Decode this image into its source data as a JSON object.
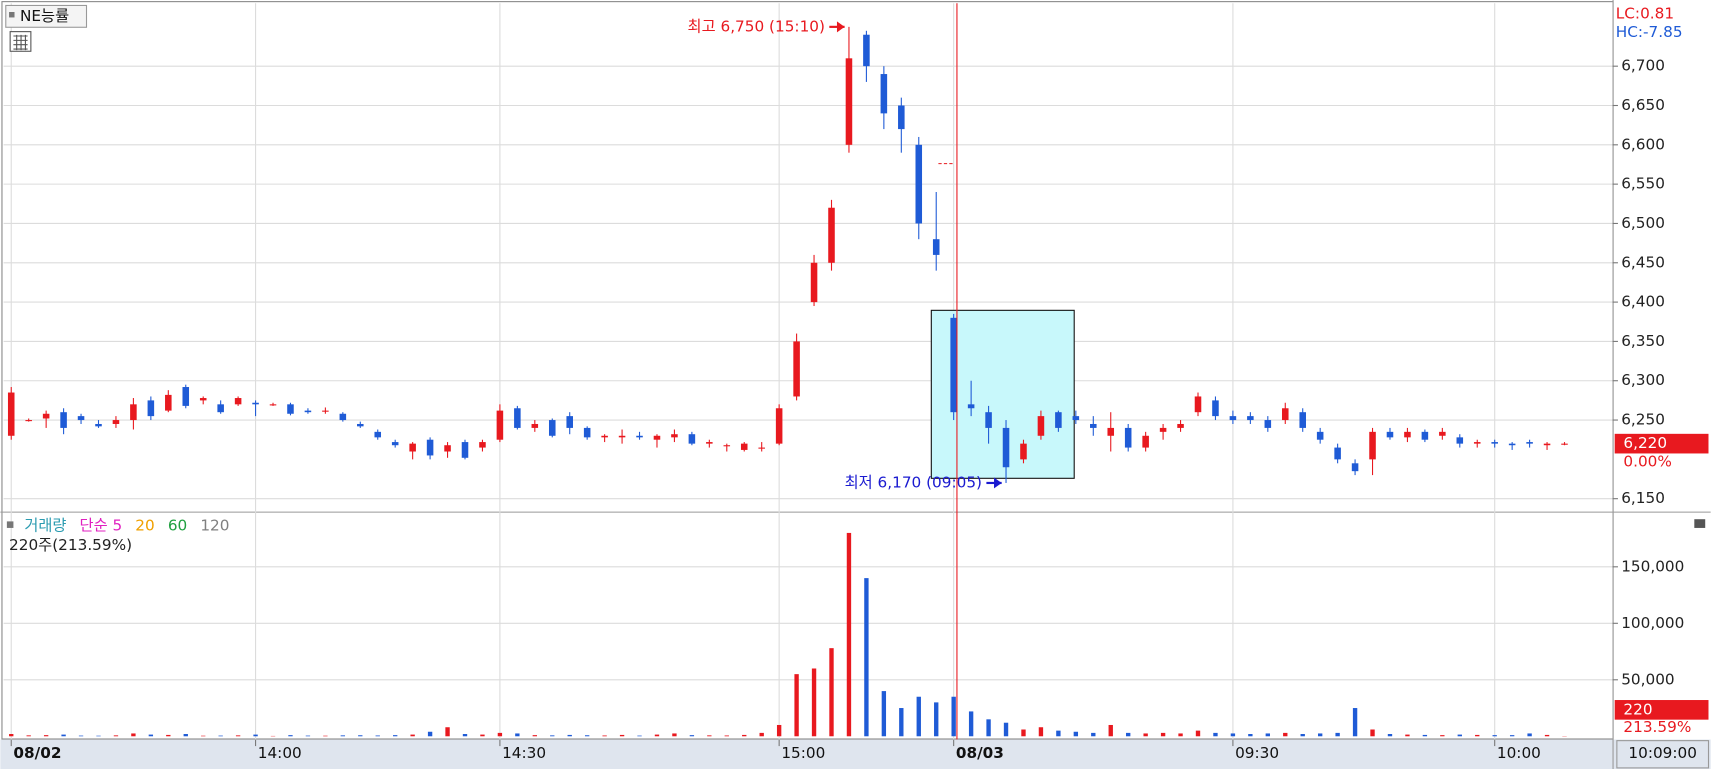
{
  "toolbar": {
    "symbol": "NE능률"
  },
  "indicators": {
    "lc": "LC:0.81",
    "hc": "HC:-7.85"
  },
  "chart_data": [
    {
      "type": "candlestick",
      "up_color": "#e8191f",
      "down_color": "#1f5bd6",
      "ylim": [
        6135,
        6780
      ],
      "yticks": [
        {
          "value": 6150,
          "label": "6,150"
        },
        {
          "value": 6250,
          "label": "6,250"
        },
        {
          "value": 6300,
          "label": "6,300"
        },
        {
          "value": 6350,
          "label": "6,350"
        },
        {
          "value": 6400,
          "label": "6,400"
        },
        {
          "value": 6450,
          "label": "6,450"
        },
        {
          "value": 6500,
          "label": "6,500"
        },
        {
          "value": 6550,
          "label": "6,550"
        },
        {
          "value": 6600,
          "label": "6,600"
        },
        {
          "value": 6650,
          "label": "6,650"
        },
        {
          "value": 6700,
          "label": "6,700"
        }
      ],
      "grid": true,
      "last_price": 6220,
      "last_price_label": "6,220",
      "change_label": "0.00%",
      "annotations": [
        {
          "text": "최고 6,750 (15:10)",
          "value": 6750,
          "index": 48,
          "color": "#e8191f"
        },
        {
          "text": "최저 6,170 (09:05)",
          "value": 6170,
          "index": 57,
          "color": "#1a1ad0"
        }
      ],
      "candles": [
        [
          6230,
          6292,
          6225,
          6285
        ],
        [
          6250,
          6252,
          6248,
          6250
        ],
        [
          6252,
          6262,
          6240,
          6258
        ],
        [
          6260,
          6265,
          6232,
          6240
        ],
        [
          6255,
          6258,
          6245,
          6250
        ],
        [
          6245,
          6250,
          6240,
          6242
        ],
        [
          6245,
          6255,
          6240,
          6250
        ],
        [
          6250,
          6278,
          6238,
          6270
        ],
        [
          6275,
          6280,
          6250,
          6255
        ],
        [
          6262,
          6288,
          6260,
          6282
        ],
        [
          6292,
          6295,
          6265,
          6268
        ],
        [
          6275,
          6280,
          6270,
          6278
        ],
        [
          6270,
          6275,
          6258,
          6260
        ],
        [
          6270,
          6280,
          6268,
          6278
        ],
        [
          6272,
          6275,
          6255,
          6270
        ],
        [
          6270,
          6272,
          6268,
          6270
        ],
        [
          6270,
          6272,
          6256,
          6258
        ],
        [
          6262,
          6265,
          6258,
          6260
        ],
        [
          6262,
          6266,
          6258,
          6262
        ],
        [
          6258,
          6260,
          6248,
          6250
        ],
        [
          6245,
          6248,
          6240,
          6242
        ],
        [
          6235,
          6238,
          6225,
          6228
        ],
        [
          6222,
          6225,
          6215,
          6218
        ],
        [
          6210,
          6222,
          6200,
          6220
        ],
        [
          6225,
          6228,
          6200,
          6205
        ],
        [
          6210,
          6222,
          6202,
          6218
        ],
        [
          6222,
          6225,
          6200,
          6202
        ],
        [
          6215,
          6225,
          6210,
          6222
        ],
        [
          6225,
          6270,
          6222,
          6262
        ],
        [
          6265,
          6268,
          6238,
          6240
        ],
        [
          6240,
          6250,
          6235,
          6245
        ],
        [
          6250,
          6252,
          6228,
          6230
        ],
        [
          6255,
          6260,
          6232,
          6240
        ],
        [
          6240,
          6242,
          6225,
          6228
        ],
        [
          6228,
          6232,
          6222,
          6230
        ],
        [
          6228,
          6238,
          6220,
          6230
        ],
        [
          6230,
          6235,
          6225,
          6228
        ],
        [
          6225,
          6232,
          6215,
          6230
        ],
        [
          6228,
          6238,
          6222,
          6232
        ],
        [
          6232,
          6235,
          6218,
          6220
        ],
        [
          6220,
          6225,
          6215,
          6222
        ],
        [
          6218,
          6220,
          6210,
          6218
        ],
        [
          6212,
          6222,
          6210,
          6220
        ],
        [
          6215,
          6222,
          6210,
          6215
        ],
        [
          6220,
          6270,
          6218,
          6265
        ],
        [
          6280,
          6360,
          6275,
          6350
        ],
        [
          6400,
          6460,
          6395,
          6450
        ],
        [
          6450,
          6530,
          6440,
          6520
        ],
        [
          6600,
          6750,
          6590,
          6710
        ],
        [
          6740,
          6745,
          6680,
          6700
        ],
        [
          6690,
          6700,
          6620,
          6640
        ],
        [
          6650,
          6660,
          6590,
          6620
        ],
        [
          6600,
          6610,
          6480,
          6500
        ],
        [
          6480,
          6540,
          6440,
          6460
        ],
        [
          6380,
          6385,
          6250,
          6260
        ],
        [
          6270,
          6300,
          6255,
          6265
        ],
        [
          6260,
          6268,
          6220,
          6240
        ],
        [
          6240,
          6250,
          6170,
          6190
        ],
        [
          6200,
          6225,
          6195,
          6220
        ],
        [
          6230,
          6262,
          6225,
          6255
        ],
        [
          6260,
          6262,
          6235,
          6240
        ],
        [
          6255,
          6262,
          6245,
          6250
        ],
        [
          6245,
          6255,
          6230,
          6240
        ],
        [
          6230,
          6260,
          6210,
          6240
        ],
        [
          6240,
          6245,
          6210,
          6215
        ],
        [
          6215,
          6235,
          6210,
          6230
        ],
        [
          6235,
          6245,
          6225,
          6240
        ],
        [
          6240,
          6250,
          6235,
          6245
        ],
        [
          6260,
          6285,
          6255,
          6280
        ],
        [
          6275,
          6280,
          6250,
          6255
        ],
        [
          6255,
          6262,
          6245,
          6250
        ],
        [
          6255,
          6260,
          6245,
          6250
        ],
        [
          6250,
          6255,
          6235,
          6240
        ],
        [
          6250,
          6272,
          6245,
          6265
        ],
        [
          6260,
          6265,
          6235,
          6240
        ],
        [
          6235,
          6240,
          6220,
          6225
        ],
        [
          6215,
          6220,
          6195,
          6200
        ],
        [
          6195,
          6200,
          6180,
          6185
        ],
        [
          6200,
          6240,
          6180,
          6235
        ],
        [
          6235,
          6240,
          6225,
          6228
        ],
        [
          6228,
          6240,
          6222,
          6235
        ],
        [
          6235,
          6238,
          6222,
          6225
        ],
        [
          6230,
          6240,
          6225,
          6235
        ],
        [
          6228,
          6232,
          6215,
          6220
        ],
        [
          6220,
          6225,
          6215,
          6222
        ],
        [
          6222,
          6225,
          6215,
          6220
        ],
        [
          6220,
          6222,
          6212,
          6218
        ],
        [
          6222,
          6225,
          6215,
          6220
        ],
        [
          6218,
          6222,
          6212,
          6220
        ],
        [
          6220,
          6222,
          6218,
          6220
        ]
      ]
    },
    {
      "type": "bar",
      "legend": [
        {
          "name": "거래량",
          "color": "#2a9bb0"
        },
        {
          "name": "단순 5",
          "color": "#e020c0"
        },
        {
          "name": "20",
          "color": "#f0a000"
        },
        {
          "name": "60",
          "color": "#20a040"
        },
        {
          "name": "120",
          "color": "#808080"
        }
      ],
      "subtitle": "220주(213.59%)",
      "ylim": [
        0,
        196000
      ],
      "yticks": [
        {
          "value": 50000,
          "label": "50,000"
        },
        {
          "value": 100000,
          "label": "100,000"
        },
        {
          "value": 150000,
          "label": "150,000"
        }
      ],
      "grid": true,
      "last_value": 220,
      "last_value_label": "220",
      "last_change_label": "213.59%",
      "xticks": [
        {
          "value": 0,
          "label": "08/02"
        },
        {
          "value": 14,
          "label": "14:00"
        },
        {
          "value": 28,
          "label": "14:30"
        },
        {
          "value": 44,
          "label": "15:00"
        },
        {
          "value": 54,
          "label": "08/03"
        },
        {
          "value": 70,
          "label": "09:30"
        },
        {
          "value": 85,
          "label": "10:00"
        }
      ],
      "cursor_time": "10:09:00",
      "values": [
        2000,
        800,
        1000,
        1500,
        600,
        500,
        800,
        2500,
        1500,
        1200,
        2000,
        500,
        600,
        800,
        1500,
        300,
        1000,
        600,
        500,
        800,
        900,
        700,
        1000,
        1500,
        4000,
        8000,
        2000,
        1500,
        3000,
        2500,
        1000,
        800,
        1200,
        900,
        700,
        1200,
        600,
        1500,
        2500,
        1000,
        800,
        700,
        1200,
        3000,
        10000,
        55000,
        60000,
        78000,
        180000,
        140000,
        40000,
        25000,
        35000,
        30000,
        35000,
        22000,
        15000,
        12000,
        6000,
        8000,
        5000,
        4000,
        3000,
        10000,
        3000,
        2500,
        3000,
        2500,
        5000,
        3000,
        2500,
        2000,
        2500,
        3000,
        2000,
        2500,
        3000,
        25000,
        6000,
        2000,
        1500,
        1200,
        1000,
        1500,
        1200,
        1000,
        1000,
        2500,
        1200,
        220
      ]
    }
  ]
}
